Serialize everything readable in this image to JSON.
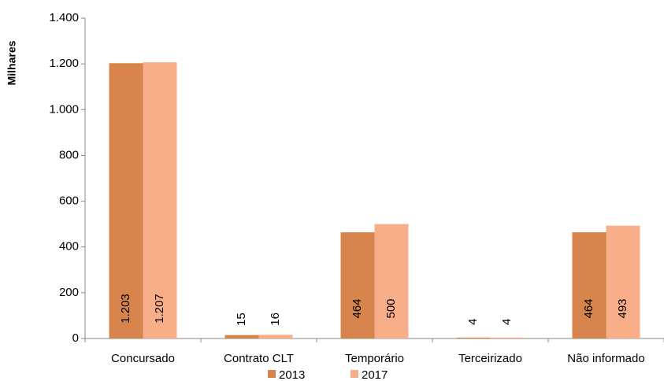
{
  "chart_data": {
    "type": "bar",
    "y_label": "Milhares",
    "categories": [
      "Concursado",
      "Contrato CLT",
      "Temporário",
      "Terceirizado",
      "Não informado"
    ],
    "series": [
      {
        "name": "2013",
        "color": "#d6844b",
        "values": [
          1203,
          15,
          464,
          4,
          464
        ],
        "value_labels": [
          "1.203",
          "15",
          "464",
          "4",
          "464"
        ]
      },
      {
        "name": "2017",
        "color": "#f9ae8a",
        "values": [
          1207,
          16,
          500,
          4,
          493
        ],
        "value_labels": [
          "1.207",
          "16",
          "500",
          "4",
          "493"
        ]
      }
    ],
    "ylim": [
      0,
      1400
    ],
    "yticks": [
      0,
      200,
      400,
      600,
      800,
      {
        "value": 1000,
        "label": "1.000"
      },
      {
        "value": 1200,
        "label": "1.200"
      },
      {
        "value": 1400,
        "label": "1.400"
      }
    ],
    "grid": false,
    "legend": "bottom"
  }
}
